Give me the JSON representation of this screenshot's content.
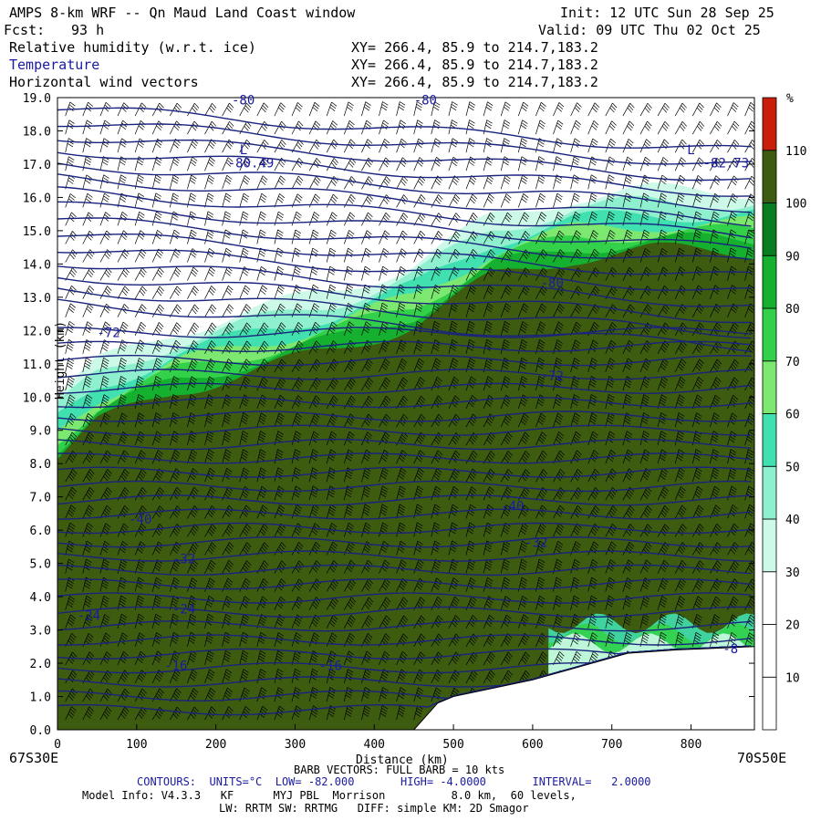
{
  "header": {
    "title": "AMPS 8-km WRF -- Qn Maud Land Coast window",
    "init": "Init: 12 UTC Sun 28 Sep 25",
    "fcst_label": "Fcst:",
    "fcst_value": "93 h",
    "valid": "Valid: 09 UTC Thu 02 Oct 25",
    "fields": [
      {
        "name": "Relative humidity (w.r.t. ice)",
        "xy": "XY= 266.4, 85.9 to 214.7,183.2"
      },
      {
        "name": "Temperature",
        "xy": "XY= 266.4, 85.9 to 214.7,183.2"
      },
      {
        "name": "Horizontal wind vectors",
        "xy": "XY= 266.4, 85.9 to 214.7,183.2"
      }
    ]
  },
  "footer": {
    "left_coord": "67S30E",
    "right_coord": "70S50E",
    "barb_info": "BARB VECTORS: FULL BARB = 10 kts",
    "contours": "CONTOURS:  UNITS=°C  LOW= -82.000       HIGH= -4.0000       INTERVAL=   2.0000",
    "model_info_1": "Model Info: V4.3.3   KF      MYJ PBL  Morrison          8.0 km,  60 levels,",
    "model_info_2": "LW: RRTM SW: RRTMG   DIFF: simple KM: 2D Smagor"
  },
  "chart_data": {
    "type": "heatmap",
    "xlabel": "Distance (km)",
    "ylabel": "Height (km)",
    "xlim": [
      0,
      880
    ],
    "ylim": [
      0,
      19
    ],
    "x_ticks": [
      0,
      100,
      200,
      300,
      400,
      500,
      600,
      700,
      800
    ],
    "y_ticks": [
      "0.0",
      "1.0",
      "2.0",
      "3.0",
      "4.0",
      "5.0",
      "6.0",
      "7.0",
      "8.0",
      "9.0",
      "10.0",
      "11.0",
      "12.0",
      "13.0",
      "14.0",
      "15.0",
      "16.0",
      "17.0",
      "18.0",
      "19.0"
    ],
    "colorbar": {
      "unit": "%",
      "ticks": [
        10,
        20,
        30,
        40,
        50,
        60,
        70,
        80,
        90,
        100,
        110
      ],
      "colors": [
        "#ffffff",
        "#ffffff",
        "#ffffff",
        "#cdfae8",
        "#8ff0d0",
        "#40e0b0",
        "#7de870",
        "#33d14a",
        "#16b030",
        "#0a7d20",
        "#3d5c10",
        "#c81e0a"
      ]
    },
    "humidity_layer_top_km": [
      {
        "x": 0,
        "top": 10.0
      },
      {
        "x": 50,
        "top": 11.0
      },
      {
        "x": 150,
        "top": 12.0
      },
      {
        "x": 250,
        "top": 12.6
      },
      {
        "x": 350,
        "top": 13.2
      },
      {
        "x": 450,
        "top": 14.0
      },
      {
        "x": 550,
        "top": 15.4
      },
      {
        "x": 650,
        "top": 16.0
      },
      {
        "x": 750,
        "top": 16.2
      },
      {
        "x": 880,
        "top": 16.2
      }
    ],
    "terrain_km": [
      {
        "x": 0,
        "h": 0.0
      },
      {
        "x": 450,
        "h": 0.0
      },
      {
        "x": 480,
        "h": 0.8
      },
      {
        "x": 500,
        "h": 1.0
      },
      {
        "x": 600,
        "h": 1.5
      },
      {
        "x": 660,
        "h": 1.9
      },
      {
        "x": 720,
        "h": 2.3
      },
      {
        "x": 780,
        "h": 2.4
      },
      {
        "x": 880,
        "h": 2.5
      }
    ],
    "temperature_contour_labels": [
      {
        "text": "-80",
        "x": 220,
        "h": 18.8
      },
      {
        "text": "-80",
        "x": 450,
        "h": 18.8
      },
      {
        "text": "L",
        "x": 230,
        "h": 17.3
      },
      {
        "text": "-80.49",
        "x": 215,
        "h": 16.9
      },
      {
        "text": "L",
        "x": 795,
        "h": 17.3
      },
      {
        "text": "-82.73",
        "x": 815,
        "h": 16.9
      },
      {
        "text": "-80",
        "x": 610,
        "h": 13.3
      },
      {
        "text": "-72",
        "x": 50,
        "h": 11.8
      },
      {
        "text": "-72",
        "x": 610,
        "h": 10.5
      },
      {
        "text": "-40",
        "x": 90,
        "h": 6.2
      },
      {
        "text": "-40",
        "x": 560,
        "h": 6.6
      },
      {
        "text": "-32",
        "x": 145,
        "h": 5.0
      },
      {
        "text": "-32",
        "x": 590,
        "h": 5.5
      },
      {
        "text": "-24",
        "x": 25,
        "h": 3.3
      },
      {
        "text": "-24",
        "x": 145,
        "h": 3.5
      },
      {
        "text": "-16",
        "x": 135,
        "h": 1.8
      },
      {
        "text": "-16",
        "x": 330,
        "h": 1.8
      },
      {
        "text": "-8",
        "x": 840,
        "h": 2.3
      }
    ]
  }
}
